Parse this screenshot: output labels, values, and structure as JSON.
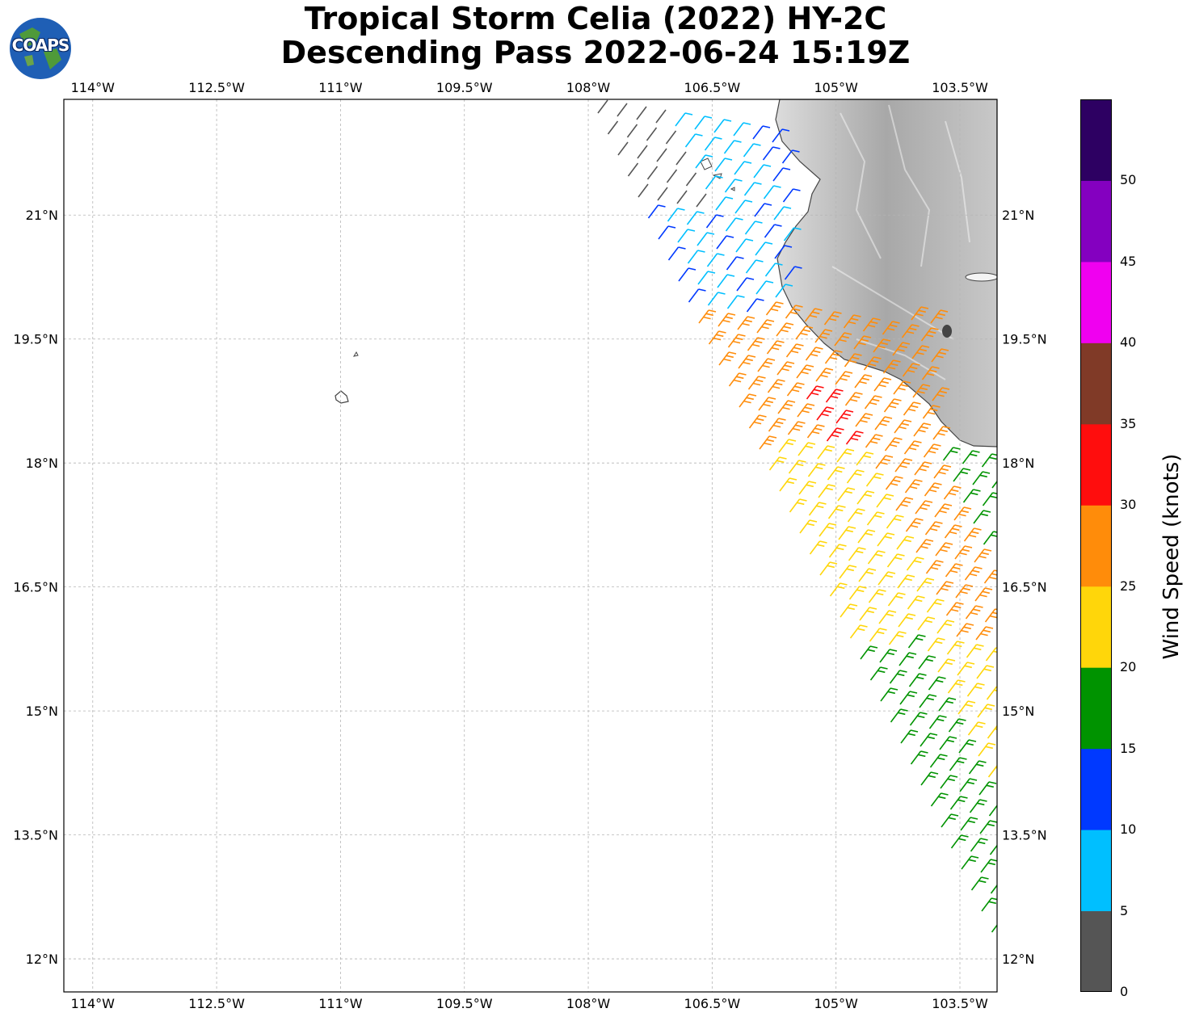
{
  "title": {
    "line1": "Tropical Storm Celia (2022) HY-2C",
    "line2": "Descending Pass 2022-06-24 15:19Z"
  },
  "logo": {
    "text": "COAPS",
    "icon": "globe-logo-icon"
  },
  "map": {
    "lon_labels": [
      "114°W",
      "112.5°W",
      "111°W",
      "109.5°W",
      "108°W",
      "106.5°W",
      "105°W",
      "103.5°W"
    ],
    "lon_values": [
      -114,
      -112.5,
      -111,
      -109.5,
      -108,
      -106.5,
      -105,
      -103.5
    ],
    "lat_labels": [
      "21°N",
      "19.5°N",
      "18°N",
      "16.5°N",
      "15°N",
      "13.5°N",
      "12°N"
    ],
    "lat_values": [
      21,
      19.5,
      18,
      16.5,
      15,
      13.5,
      12
    ],
    "extent": {
      "lon_min": -114.35,
      "lon_max": -103.05,
      "lat_min": 11.6,
      "lat_max": 22.4
    }
  },
  "colorbar": {
    "title": "Wind Speed (knots)",
    "tick_labels": [
      "0",
      "5",
      "10",
      "15",
      "20",
      "25",
      "30",
      "35",
      "40",
      "45",
      "50"
    ],
    "bounds": [
      0,
      5,
      10,
      15,
      20,
      25,
      30,
      35,
      40,
      45,
      50,
      55
    ],
    "colors": [
      "#555555",
      "#00bfff",
      "#0039ff",
      "#009300",
      "#ffd60a",
      "#ff8c0a",
      "#ff0d0d",
      "#803a27",
      "#f000f0",
      "#8400c0",
      "#2d0062"
    ]
  }
}
